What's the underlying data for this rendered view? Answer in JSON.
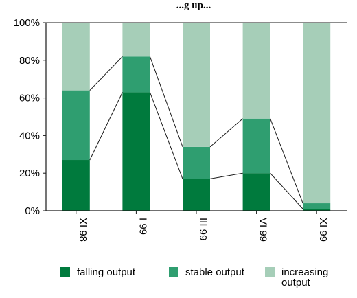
{
  "chart_data": {
    "type": "bar",
    "stacked": true,
    "percent": true,
    "title_partial": "...g up...",
    "categories": [
      "XI 98",
      "I 99",
      "III 99",
      "VI 99",
      "XI 99"
    ],
    "series": [
      {
        "name": "falling output",
        "color": "#007a3d",
        "values": [
          27,
          63,
          17,
          20,
          1
        ]
      },
      {
        "name": "stable output",
        "color": "#2f9e70",
        "values": [
          37,
          19,
          17,
          29,
          3
        ]
      },
      {
        "name": "increasing output",
        "color": "#a6ceb8",
        "values": [
          36,
          18,
          66,
          51,
          96
        ]
      }
    ],
    "ylim": [
      0,
      100
    ],
    "yticks": [
      "0%",
      "20%",
      "40%",
      "60%",
      "80%",
      "100%"
    ],
    "connector_lines": true,
    "legend_position": "bottom"
  }
}
